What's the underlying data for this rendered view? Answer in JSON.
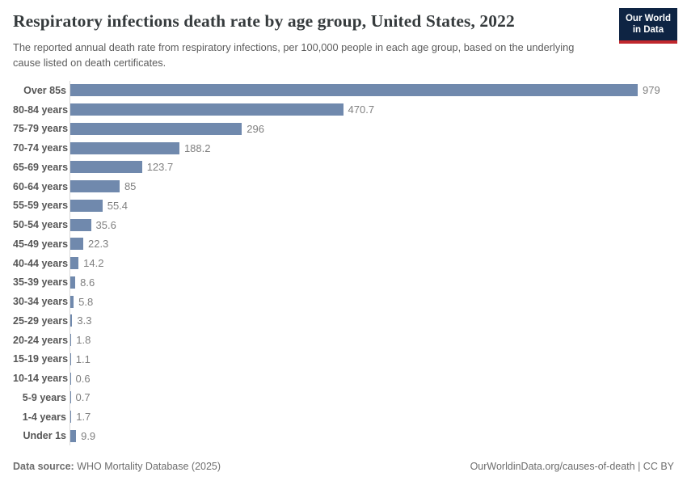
{
  "header": {
    "title": "Respiratory infections death rate by age group, United States, 2022",
    "subtitle": "The reported annual death rate from respiratory infections, per 100,000 people in each age group, based on the underlying cause listed on death certificates.",
    "logo": {
      "line1": "Our World",
      "line2": "in Data"
    }
  },
  "chart_data": {
    "type": "bar",
    "orientation": "horizontal",
    "title": "Respiratory infections death rate by age group, United States, 2022",
    "categories": [
      "Over 85s",
      "80-84 years",
      "75-79 years",
      "70-74 years",
      "65-69 years",
      "60-64 years",
      "55-59 years",
      "50-54 years",
      "45-49 years",
      "40-44 years",
      "35-39 years",
      "30-34 years",
      "25-29 years",
      "20-24 years",
      "15-19 years",
      "10-14 years",
      "5-9 years",
      "1-4 years",
      "Under 1s"
    ],
    "values": [
      979,
      470.7,
      296,
      188.2,
      123.7,
      85,
      55.4,
      35.6,
      22.3,
      14.2,
      8.6,
      5.8,
      3.3,
      1.8,
      1.1,
      0.6,
      0.7,
      1.7,
      9.9
    ],
    "value_labels": [
      "979",
      "470.7",
      "296",
      "188.2",
      "123.7",
      "85",
      "55.4",
      "35.6",
      "22.3",
      "14.2",
      "8.6",
      "5.8",
      "3.3",
      "1.8",
      "1.1",
      "0.6",
      "0.7",
      "1.7",
      "9.9"
    ],
    "xlim": [
      0,
      979
    ],
    "grid": false,
    "legend": "none",
    "bar_color": "#7089ad",
    "axis_line_color": "#d9d9d9"
  },
  "footer": {
    "datasource_label": "Data source:",
    "datasource_value": " WHO Mortality Database (2025)",
    "rights": "OurWorldinData.org/causes-of-death | CC BY"
  }
}
